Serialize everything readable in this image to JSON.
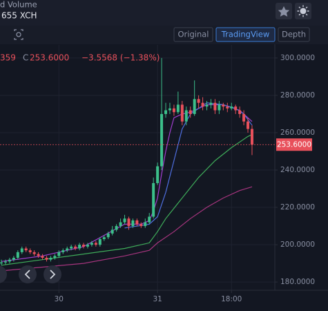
{
  "header": {
    "volume_label": "d Volume",
    "volume_value": "655 XCH"
  },
  "toolbar": {
    "buttons": [
      "Original",
      "TradingView",
      "Depth"
    ],
    "active": 1
  },
  "legend_row": {
    "fragment": "359",
    "close_label": "C",
    "close": "253.6000",
    "change": "−3.5568 (−1.38%)"
  },
  "chart_data": {
    "type": "candlestick",
    "up_color": "#3cbf8a",
    "down_color": "#e8505b",
    "xlim": [
      -0.34,
      66.55
    ],
    "xticks": [
      {
        "value": 14,
        "label": "30"
      },
      {
        "value": 38,
        "label": "31"
      },
      {
        "value": 56,
        "label": "18:00"
      }
    ],
    "ylim": [
      175.6,
      307
    ],
    "yticks": [
      {
        "value": 180,
        "label": "180.0000"
      },
      {
        "value": 200,
        "label": "200.0000"
      },
      {
        "value": 220,
        "label": "220.0000"
      },
      {
        "value": 240,
        "label": "240.0000"
      },
      {
        "value": 260,
        "label": "260.0000"
      },
      {
        "value": 280,
        "label": "280.0000"
      },
      {
        "value": 300,
        "label": "300.0000"
      }
    ],
    "grid": true,
    "open": [
      190,
      190.5,
      191,
      192,
      193,
      196,
      198,
      197,
      196,
      195,
      194,
      193,
      192,
      193,
      194,
      196,
      197,
      198,
      199,
      198,
      200,
      199,
      200,
      201,
      200,
      203,
      204,
      206,
      208,
      210,
      212,
      214,
      210,
      213,
      211,
      210,
      212,
      215,
      233,
      242,
      270,
      272,
      273,
      271,
      275,
      266,
      272,
      270,
      278,
      276,
      274,
      275,
      276,
      272,
      275,
      274,
      273,
      274,
      272,
      270,
      266,
      262
    ],
    "high": [
      192,
      192,
      193,
      194,
      197,
      199,
      199,
      198,
      197,
      196,
      195,
      194,
      194,
      195,
      197,
      198,
      199,
      200,
      200,
      201,
      201,
      201,
      202,
      202,
      204,
      205,
      207,
      210,
      211,
      214,
      216,
      215,
      214,
      214,
      212,
      214,
      217,
      236,
      244,
      300,
      276,
      276,
      275,
      282,
      277,
      274,
      274,
      288,
      280,
      279,
      277,
      278,
      278,
      277,
      276,
      276,
      276,
      275,
      274,
      272,
      268,
      264
    ],
    "low": [
      189,
      189.5,
      190,
      191,
      192,
      195,
      196,
      195,
      194,
      193,
      192,
      191,
      191,
      192,
      193,
      195,
      196,
      197,
      197,
      197,
      198,
      198,
      199,
      199,
      199,
      202,
      203,
      205,
      207,
      209,
      211,
      208,
      209,
      210,
      209,
      209,
      211,
      214,
      232,
      240,
      268,
      270,
      269,
      270,
      264,
      264,
      268,
      269,
      273,
      272,
      272,
      273,
      270,
      270,
      272,
      271,
      272,
      270,
      268,
      264,
      260,
      248
    ],
    "close": [
      190.5,
      191,
      192,
      193,
      196,
      198,
      197,
      196,
      195,
      194,
      193,
      192,
      193,
      194,
      196,
      197,
      198,
      199,
      198,
      200,
      199,
      200,
      201,
      200,
      203,
      204,
      206,
      208,
      210,
      212,
      214,
      210,
      213,
      211,
      210,
      212,
      215,
      233,
      242,
      270,
      272,
      273,
      271,
      275,
      266,
      272,
      270,
      278,
      276,
      274,
      275,
      276,
      272,
      275,
      274,
      273,
      274,
      272,
      270,
      266,
      262,
      253.6
    ],
    "lines": [
      {
        "color": "#a23fd0",
        "x": [
          0,
          10,
          20,
          30,
          34,
          36,
          37,
          38,
          39,
          40,
          41,
          42,
          44,
          46,
          50,
          54,
          58,
          61
        ],
        "values": [
          191,
          194,
          199,
          211,
          211,
          213,
          218,
          225,
          238,
          250,
          260,
          268,
          270,
          271,
          275,
          275,
          272,
          266
        ]
      },
      {
        "color": "#4f6fe0",
        "x": [
          30,
          36,
          38,
          40,
          42,
          44,
          46,
          50,
          54,
          57,
          59,
          61
        ],
        "values": [
          209,
          211,
          215,
          228,
          245,
          262,
          270,
          276,
          275,
          273,
          270,
          264
        ]
      },
      {
        "color": "#3fae5a",
        "x": [
          0,
          10,
          20,
          30,
          36,
          38,
          40,
          44,
          48,
          52,
          56,
          60,
          61
        ],
        "values": [
          189,
          192,
          195,
          198,
          201,
          207,
          214,
          225,
          236,
          245,
          252,
          258,
          259
        ]
      },
      {
        "color": "#a8357f",
        "x": [
          0,
          10,
          20,
          30,
          36,
          38,
          42,
          46,
          50,
          54,
          58,
          61
        ],
        "values": [
          186,
          188,
          190,
          194,
          197,
          201,
          207,
          214,
          220,
          225,
          229,
          231
        ]
      }
    ],
    "last_price": 253.6,
    "last_price_label": "253.6000"
  }
}
